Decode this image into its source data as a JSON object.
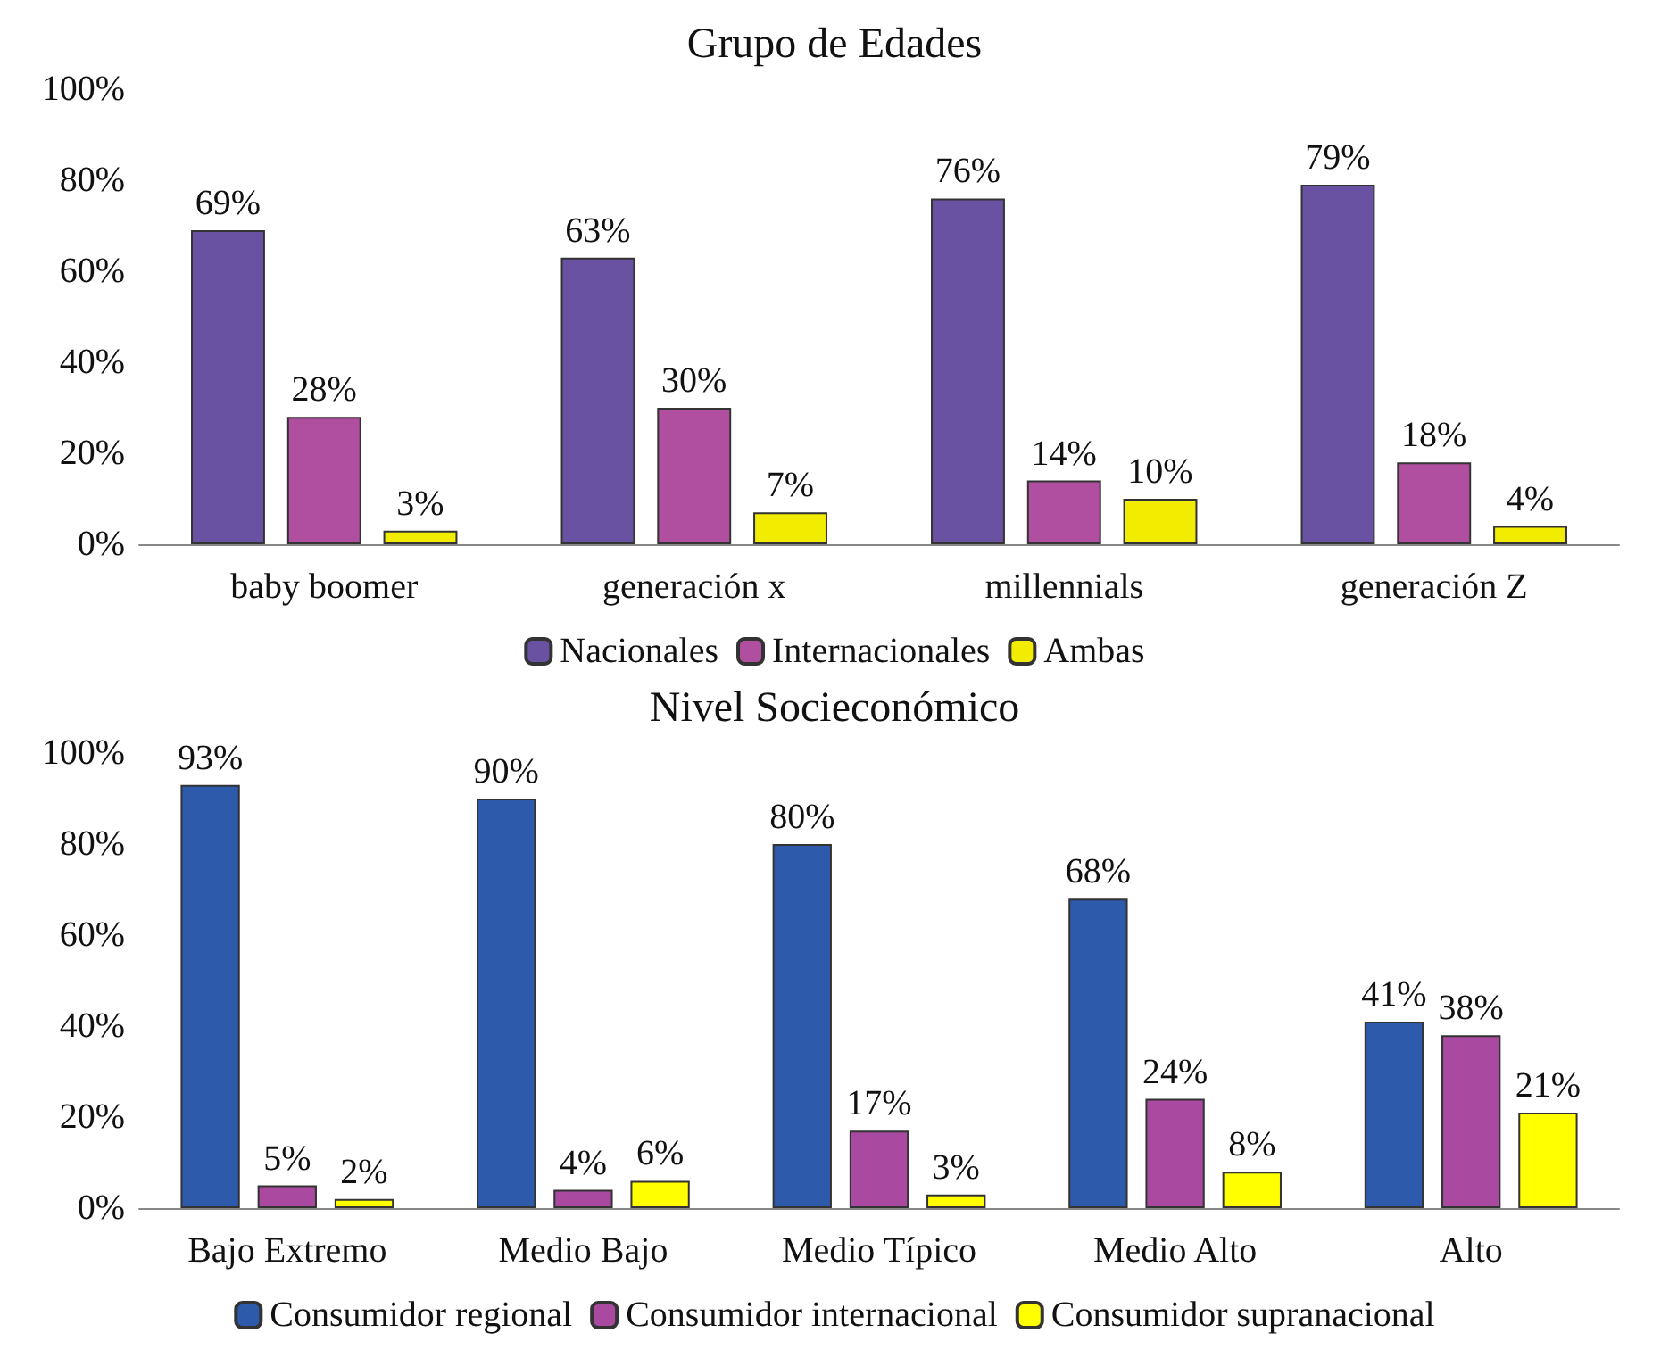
{
  "chart_data": [
    {
      "type": "bar",
      "title": "Grupo de Edades",
      "categories": [
        "baby boomer",
        "generación x",
        "millennials",
        "generación Z"
      ],
      "series": [
        {
          "name": "Nacionales",
          "color": "#6a52a3",
          "values": [
            69,
            63,
            76,
            79
          ],
          "value_labels": [
            "69%",
            "63%",
            "76%",
            "79%"
          ]
        },
        {
          "name": "Internacionales",
          "color": "#b04fa0",
          "values": [
            28,
            30,
            14,
            18
          ],
          "value_labels": [
            "28%",
            "30%",
            "14%",
            "18%"
          ]
        },
        {
          "name": "Ambas",
          "color": "#f2ec00",
          "values": [
            3,
            7,
            10,
            4
          ],
          "value_labels": [
            "3%",
            "7%",
            "10%",
            "4%"
          ]
        }
      ],
      "ylim": [
        0,
        100
      ],
      "yticks": [
        {
          "value": 0,
          "label": "0%"
        },
        {
          "value": 20,
          "label": "20%"
        },
        {
          "value": 40,
          "label": "40%"
        },
        {
          "value": 60,
          "label": "60%"
        },
        {
          "value": 80,
          "label": "80%"
        },
        {
          "value": 100,
          "label": "100%"
        }
      ],
      "grid": false,
      "legend": "bottom"
    },
    {
      "type": "bar",
      "title": "Nivel Socieconómico",
      "categories": [
        "Bajo Extremo",
        "Medio Bajo",
        "Medio Típico",
        "Medio Alto",
        "Alto"
      ],
      "series": [
        {
          "name": "Consumidor regional",
          "color": "#2e5aac",
          "values": [
            93,
            90,
            80,
            68,
            41
          ],
          "value_labels": [
            "93%",
            "90%",
            "80%",
            "68%",
            "41%"
          ]
        },
        {
          "name": "Consumidor internacional",
          "color": "#a9499f",
          "values": [
            5,
            4,
            17,
            24,
            38
          ],
          "value_labels": [
            "5%",
            "4%",
            "17%",
            "24%",
            "38%"
          ]
        },
        {
          "name": "Consumidor supranacional",
          "color": "#ffff00",
          "values": [
            2,
            6,
            3,
            8,
            21
          ],
          "value_labels": [
            "2%",
            "6%",
            "3%",
            "8%",
            "21%"
          ]
        }
      ],
      "ylim": [
        0,
        100
      ],
      "yticks": [
        {
          "value": 0,
          "label": "0%"
        },
        {
          "value": 20,
          "label": "20%"
        },
        {
          "value": 40,
          "label": "40%"
        },
        {
          "value": 60,
          "label": "60%"
        },
        {
          "value": 80,
          "label": "80%"
        },
        {
          "value": 100,
          "label": "100%"
        }
      ],
      "grid": false,
      "legend": "bottom"
    }
  ]
}
